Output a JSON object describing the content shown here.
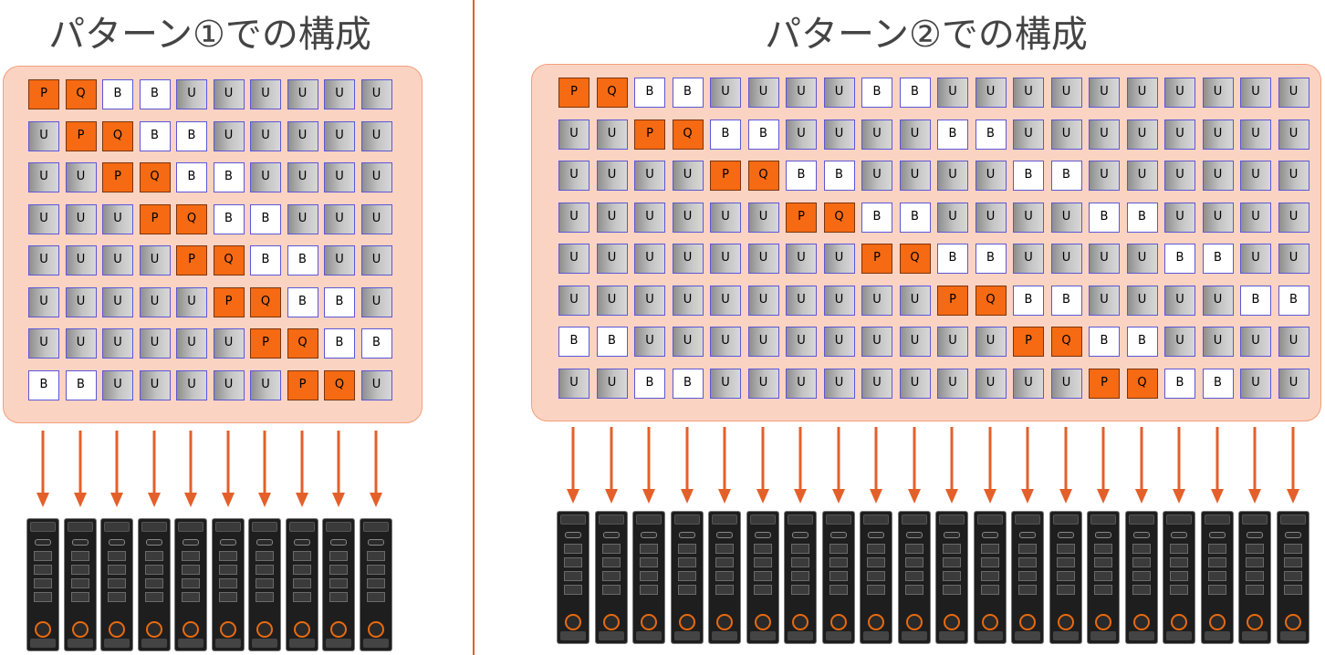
{
  "title_left": "パターン①での構成",
  "title_right": "パターン②での構成",
  "colors": {
    "accent": "#e3602a",
    "parity": "#f56a12",
    "panel": "#fbd3c2",
    "block_border": "#5b57d6"
  },
  "pattern1": {
    "disk_count": 10,
    "rows": [
      [
        "P",
        "Q",
        "B",
        "B",
        "U",
        "U",
        "U",
        "U",
        "U",
        "U"
      ],
      [
        "U",
        "P",
        "Q",
        "B",
        "B",
        "U",
        "U",
        "U",
        "U",
        "U"
      ],
      [
        "U",
        "U",
        "P",
        "Q",
        "B",
        "B",
        "U",
        "U",
        "U",
        "U"
      ],
      [
        "U",
        "U",
        "U",
        "P",
        "Q",
        "B",
        "B",
        "U",
        "U",
        "U"
      ],
      [
        "U",
        "U",
        "U",
        "U",
        "P",
        "Q",
        "B",
        "B",
        "U",
        "U"
      ],
      [
        "U",
        "U",
        "U",
        "U",
        "U",
        "P",
        "Q",
        "B",
        "B",
        "U"
      ],
      [
        "U",
        "U",
        "U",
        "U",
        "U",
        "U",
        "P",
        "Q",
        "B",
        "B"
      ],
      [
        "B",
        "B",
        "U",
        "U",
        "U",
        "U",
        "U",
        "P",
        "Q",
        "U"
      ]
    ]
  },
  "pattern2": {
    "disk_count": 20,
    "rows": [
      [
        "P",
        "Q",
        "B",
        "B",
        "U",
        "U",
        "U",
        "U",
        "B",
        "B",
        "U",
        "U",
        "U",
        "U",
        "U",
        "U",
        "U",
        "U",
        "U",
        "U"
      ],
      [
        "U",
        "U",
        "P",
        "Q",
        "B",
        "B",
        "U",
        "U",
        "U",
        "U",
        "B",
        "B",
        "U",
        "U",
        "U",
        "U",
        "U",
        "U",
        "U",
        "U"
      ],
      [
        "U",
        "U",
        "U",
        "U",
        "P",
        "Q",
        "B",
        "B",
        "U",
        "U",
        "U",
        "U",
        "B",
        "B",
        "U",
        "U",
        "U",
        "U",
        "U",
        "U"
      ],
      [
        "U",
        "U",
        "U",
        "U",
        "U",
        "U",
        "P",
        "Q",
        "B",
        "B",
        "U",
        "U",
        "U",
        "U",
        "B",
        "B",
        "U",
        "U",
        "U",
        "U"
      ],
      [
        "U",
        "U",
        "U",
        "U",
        "U",
        "U",
        "U",
        "U",
        "P",
        "Q",
        "B",
        "B",
        "U",
        "U",
        "U",
        "U",
        "B",
        "B",
        "U",
        "U"
      ],
      [
        "U",
        "U",
        "U",
        "U",
        "U",
        "U",
        "U",
        "U",
        "U",
        "U",
        "P",
        "Q",
        "B",
        "B",
        "U",
        "U",
        "U",
        "U",
        "B",
        "B"
      ],
      [
        "B",
        "B",
        "U",
        "U",
        "U",
        "U",
        "U",
        "U",
        "U",
        "U",
        "U",
        "U",
        "P",
        "Q",
        "B",
        "B",
        "U",
        "U",
        "U",
        "U"
      ],
      [
        "U",
        "U",
        "B",
        "B",
        "U",
        "U",
        "U",
        "U",
        "U",
        "U",
        "U",
        "U",
        "U",
        "U",
        "P",
        "Q",
        "B",
        "B",
        "U",
        "U"
      ]
    ]
  }
}
